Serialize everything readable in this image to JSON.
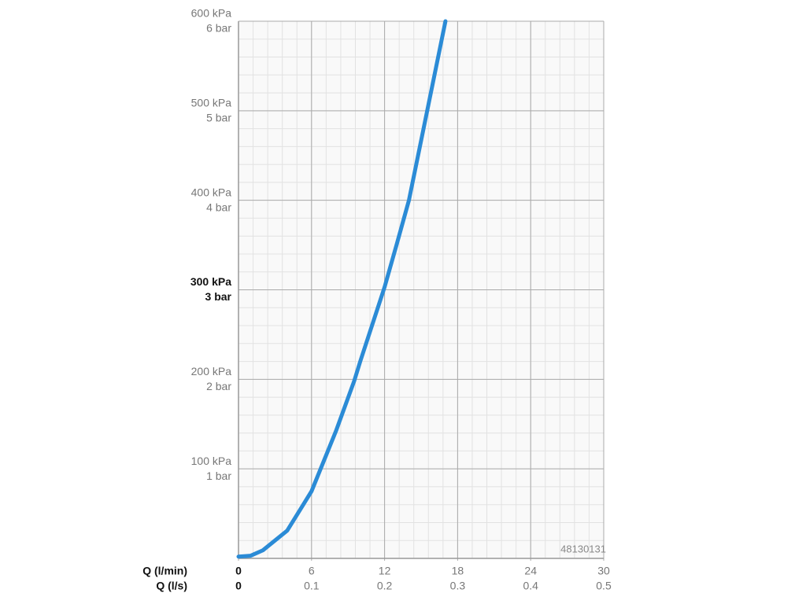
{
  "chart_data": {
    "type": "line",
    "xlabel": "Q (l/min)",
    "x2label": "Q (l/s)",
    "annotation": "48130131",
    "x": [
      0,
      1,
      2,
      4,
      6,
      8,
      9.5,
      10,
      12,
      13,
      14,
      15.5,
      17
    ],
    "series": [
      {
        "color": "#2b8bd6",
        "values": [
          2,
          3,
          9,
          31,
          75,
          142,
          198,
          220,
          303,
          351,
          400,
          500,
          600
        ]
      }
    ],
    "xlim": [
      0,
      30
    ],
    "xticks": [
      0,
      6,
      12,
      18,
      24,
      30
    ],
    "x2lim": [
      0,
      0.5
    ],
    "x2ticks": [
      0,
      0.1,
      0.2,
      0.3,
      0.4,
      0.5
    ],
    "ylim": [
      0,
      600
    ],
    "yticks": [
      {
        "value": 100,
        "label": "100 kPa",
        "label2": "1 bar",
        "bold": false
      },
      {
        "value": 200,
        "label": "200 kPa",
        "label2": "2 bar",
        "bold": false
      },
      {
        "value": 300,
        "label": "300 kPa",
        "label2": "3 bar",
        "bold": true
      },
      {
        "value": 400,
        "label": "400 kPa",
        "label2": "4 bar",
        "bold": false
      },
      {
        "value": 500,
        "label": "500 kPa",
        "label2": "5 bar",
        "bold": false
      },
      {
        "value": 600,
        "label": "600 kPa",
        "label2": "6 bar",
        "bold": false
      }
    ],
    "grid": true,
    "minor_divisions": 5
  }
}
